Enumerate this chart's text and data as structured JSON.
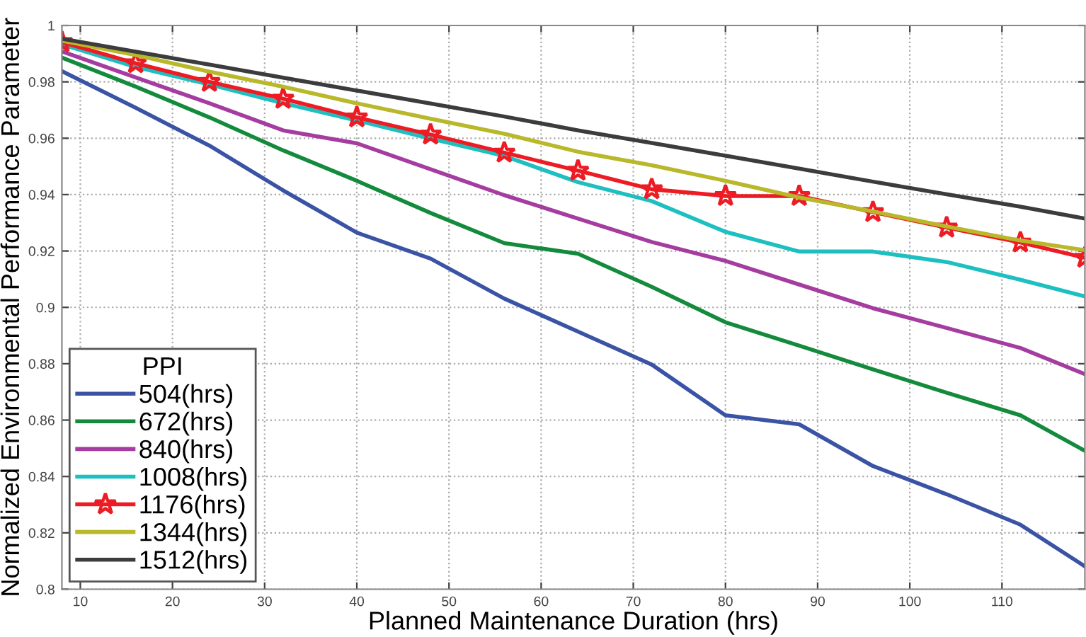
{
  "chart_data": {
    "type": "line",
    "xlabel": "Planned Maintenance Duration (hrs)",
    "ylabel": "Normalized Environmental Performance Parameter",
    "legend_title": "PPI",
    "legend": "bottom left",
    "grid": true,
    "x": [
      8,
      16,
      24,
      32,
      40,
      48,
      56,
      64,
      72,
      80,
      88,
      96,
      104,
      112,
      119
    ],
    "xlim": [
      8,
      119
    ],
    "xticks": [
      10,
      20,
      30,
      40,
      50,
      60,
      70,
      80,
      90,
      100,
      110
    ],
    "ylim": [
      0.8,
      1
    ],
    "yticks": [
      0.8,
      0.82,
      0.84,
      0.86,
      0.88,
      0.9,
      0.92,
      0.94,
      0.96,
      0.98,
      1
    ],
    "series": [
      {
        "name": "504(hrs)",
        "color": "#3a53a4",
        "marker": "none",
        "values": [
          0.9838,
          0.9708,
          0.9574,
          0.9415,
          0.9265,
          0.9173,
          0.9031,
          0.8914,
          0.8797,
          0.8617,
          0.8585,
          0.8437,
          0.8337,
          0.8229,
          0.8081
        ]
      },
      {
        "name": "672(hrs)",
        "color": "#138a3c",
        "marker": "none",
        "values": [
          0.9886,
          0.9783,
          0.9674,
          0.9557,
          0.9449,
          0.9335,
          0.9228,
          0.919,
          0.9073,
          0.8947,
          0.8864,
          0.878,
          0.8697,
          0.8617,
          0.8491
        ]
      },
      {
        "name": "840(hrs)",
        "color": "#a43d9f",
        "marker": "none",
        "values": [
          0.9908,
          0.9816,
          0.9724,
          0.9628,
          0.9582,
          0.949,
          0.9398,
          0.9315,
          0.9232,
          0.9165,
          0.9081,
          0.8997,
          0.8927,
          0.8856,
          0.8763
        ]
      },
      {
        "name": "1008(hrs)",
        "color": "#1dbfc0",
        "marker": "none",
        "values": [
          0.9933,
          0.9853,
          0.9791,
          0.9724,
          0.9663,
          0.9599,
          0.9537,
          0.9444,
          0.9377,
          0.9268,
          0.9198,
          0.9198,
          0.9161,
          0.9098,
          0.9039
        ]
      },
      {
        "name": "1176(hrs)",
        "color": "#ed1c24",
        "marker": "star",
        "values": [
          0.9941,
          0.9866,
          0.98,
          0.974,
          0.9674,
          0.9613,
          0.9549,
          0.9485,
          0.9419,
          0.9395,
          0.9395,
          0.9338,
          0.9283,
          0.923,
          0.9176
        ]
      },
      {
        "name": "1344(hrs)",
        "color": "#b8b82a",
        "marker": "none",
        "values": [
          0.9946,
          0.9895,
          0.9836,
          0.9783,
          0.9724,
          0.9669,
          0.9616,
          0.9552,
          0.9504,
          0.9449,
          0.939,
          0.934,
          0.9287,
          0.9237,
          0.9203
        ]
      },
      {
        "name": "1512(hrs)",
        "color": "#3c3c3c",
        "marker": "none",
        "values": [
          0.9953,
          0.9907,
          0.9861,
          0.9815,
          0.9769,
          0.9723,
          0.9677,
          0.9628,
          0.9583,
          0.9538,
          0.9492,
          0.9446,
          0.9401,
          0.9357,
          0.9315
        ]
      }
    ]
  }
}
